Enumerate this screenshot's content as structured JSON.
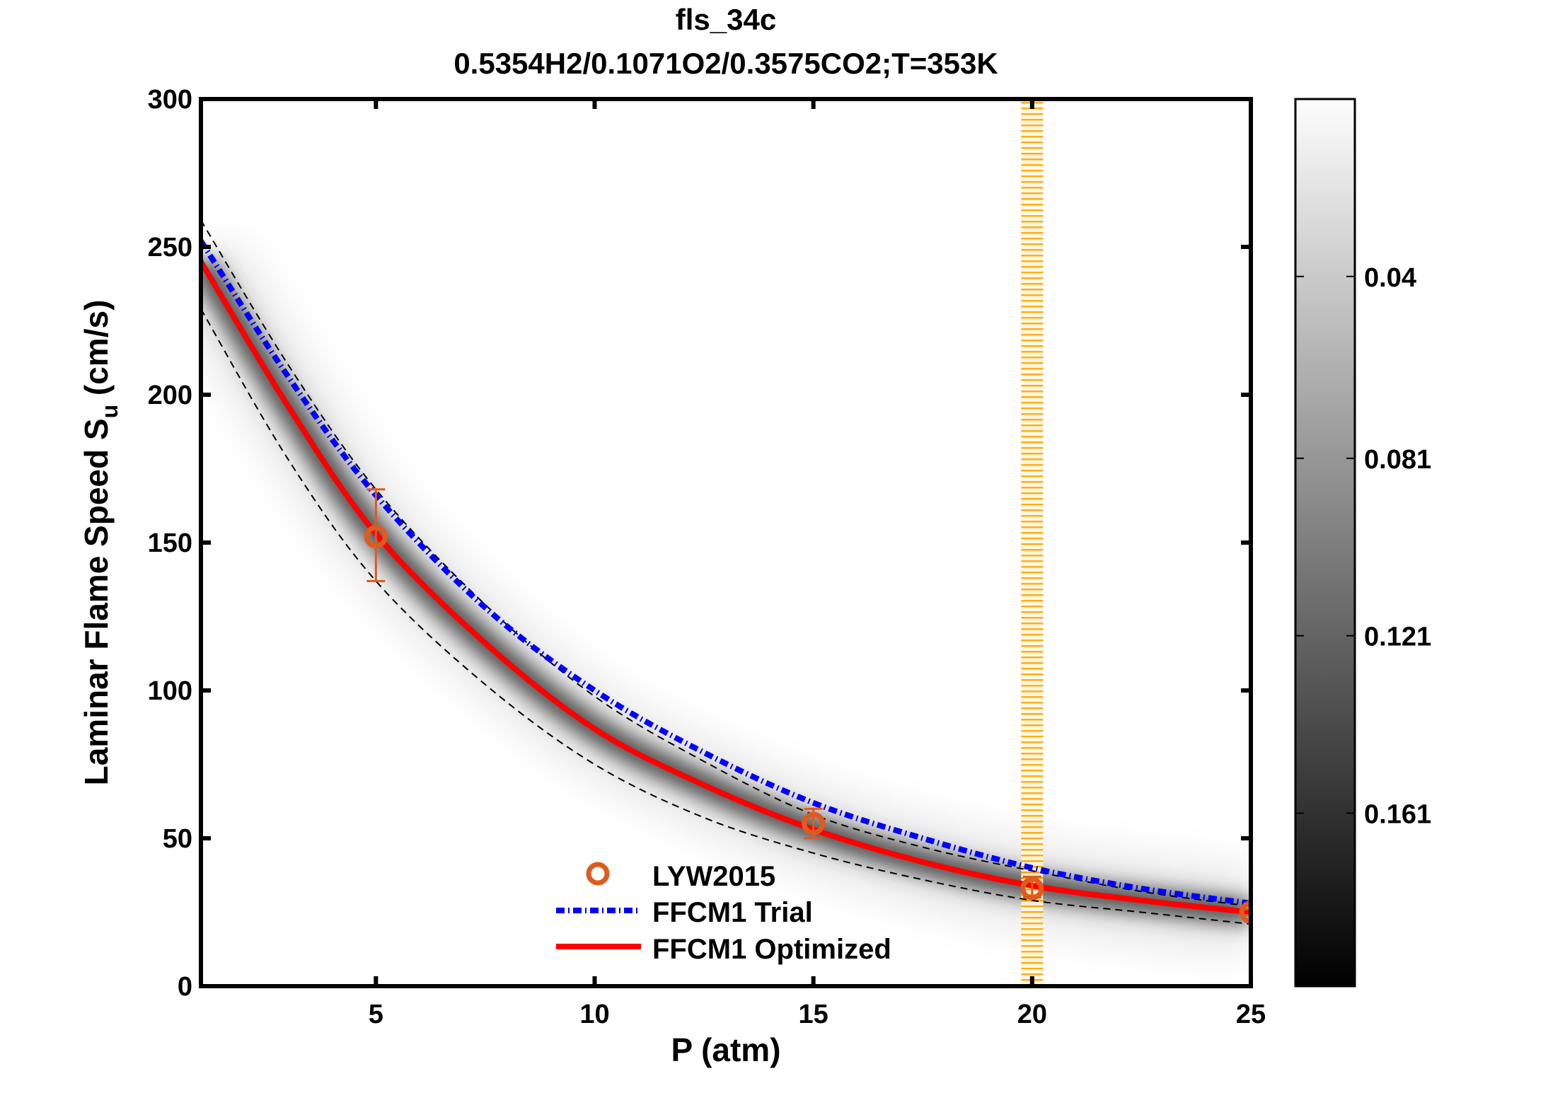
{
  "chart_data": {
    "type": "line",
    "title": "fls_34c",
    "subtitle": "0.5354H2/0.1071O2/0.3575CO2;T=353K",
    "xlabel": "P (atm)",
    "ylabel_main": "Laminar Flame Speed S",
    "ylabel_sub": "u",
    "ylabel_unit": " (cm/s)",
    "xlim": [
      1,
      25
    ],
    "ylim": [
      0,
      300
    ],
    "xticks": [
      5,
      10,
      15,
      20,
      25
    ],
    "yticks": [
      0,
      50,
      100,
      150,
      200,
      250,
      300
    ],
    "grid": false,
    "legend_placement": "bottom-center",
    "x": [
      1,
      3,
      5,
      7.5,
      10,
      12.5,
      15,
      17.5,
      20,
      22.5,
      25
    ],
    "series": [
      {
        "name": "FFCM1 Trial",
        "style": "dash-dot",
        "color": "#0000ff",
        "values": [
          252,
          206,
          166,
          128,
          100,
          79,
          62,
          50,
          40,
          33,
          28
        ]
      },
      {
        "name": "FFCM1 Optimized",
        "style": "solid",
        "color": "#ff0000",
        "values": [
          245,
          196,
          153,
          116,
          87,
          68,
          53,
          42,
          34,
          29,
          25
        ]
      },
      {
        "style": "dashed",
        "color": "#000000",
        "role": "upper-bound",
        "values": [
          259,
          210,
          168,
          129,
          98,
          76,
          58,
          47,
          39,
          32,
          27
        ]
      },
      {
        "style": "dashed",
        "color": "#000000",
        "role": "lower-bound",
        "values": [
          229,
          178,
          137,
          102,
          75,
          57,
          45,
          36,
          29,
          25,
          21
        ]
      }
    ],
    "experimental": {
      "name": "LYW2015",
      "color": "#e05a1e",
      "points": [
        {
          "x": 5,
          "y": 152,
          "ylow": 137,
          "yhigh": 168
        },
        {
          "x": 15,
          "y": 55,
          "ylow": 50,
          "yhigh": 60
        },
        {
          "x": 20,
          "y": 33,
          "ylow": 30,
          "yhigh": 37
        },
        {
          "x": 25,
          "y": 25,
          "ylow": 24,
          "yhigh": 26
        }
      ]
    },
    "highlight_band": {
      "x": [
        19.75,
        20.25
      ],
      "color": "#ffa500"
    },
    "colorbar": {
      "colormap": "gray (white = low, black = high)",
      "range": [
        0,
        0.2
      ],
      "ticks": [
        "0.04",
        "0.081",
        "0.121",
        "0.161"
      ],
      "tick_values": [
        0.04,
        0.081,
        0.121,
        0.161
      ]
    }
  }
}
